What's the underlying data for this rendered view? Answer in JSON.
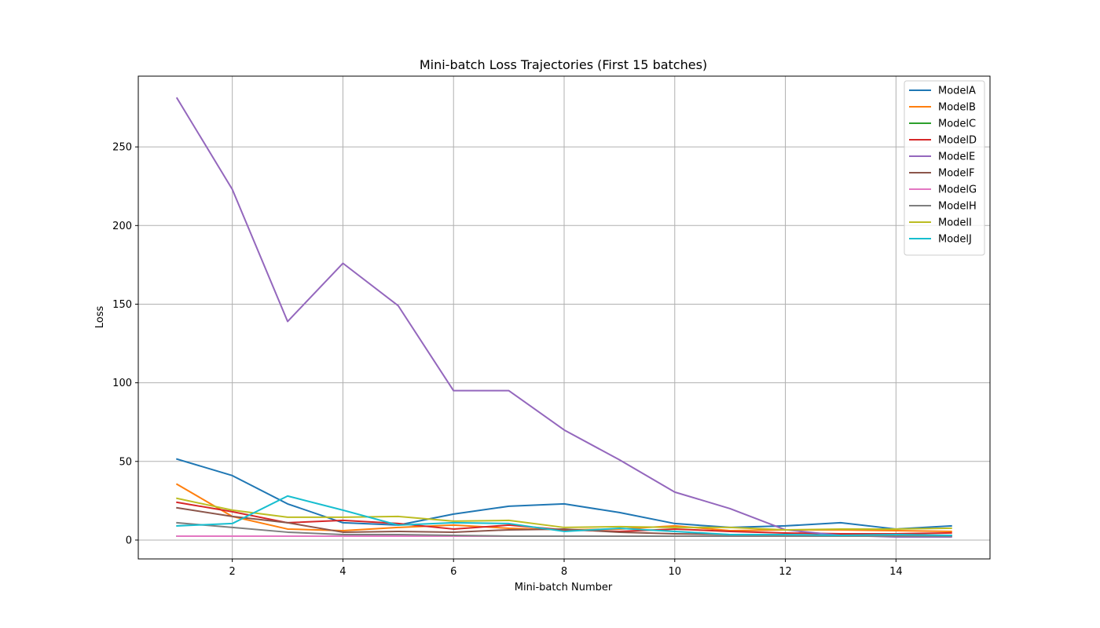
{
  "chart_data": {
    "type": "line",
    "title": "Mini-batch Loss Trajectories (First 15 batches)",
    "xlabel": "Mini-batch Number",
    "ylabel": "Loss",
    "xlim": [
      0.3,
      15.7
    ],
    "ylim": [
      -12,
      295
    ],
    "xticks": [
      2,
      4,
      6,
      8,
      10,
      12,
      14
    ],
    "yticks": [
      0,
      50,
      100,
      150,
      200,
      250
    ],
    "grid": true,
    "legend_position": "top-right",
    "x": [
      1,
      2,
      3,
      4,
      5,
      6,
      7,
      8,
      9,
      10,
      11,
      12,
      13,
      14,
      15
    ],
    "series": [
      {
        "name": "ModelA",
        "color": "#1f77b4",
        "values": [
          51.5,
          41,
          23,
          11,
          9.5,
          16.5,
          21.5,
          23,
          17.5,
          10.5,
          8,
          9,
          11,
          7,
          9
        ]
      },
      {
        "name": "ModelB",
        "color": "#ff7f0e",
        "values": [
          35.5,
          15,
          7,
          6,
          8,
          9.5,
          7.5,
          6.5,
          7,
          9,
          6,
          6.5,
          6.5,
          6,
          5.5
        ]
      },
      {
        "name": "ModelC",
        "color": "#2ca02c",
        "values": [
          2.5,
          2.5,
          2.5,
          2.5,
          2.5,
          2.5,
          2.5,
          2.5,
          2.5,
          2.5,
          2.5,
          2.5,
          2.5,
          2.5,
          2.5
        ]
      },
      {
        "name": "ModelD",
        "color": "#d62728",
        "values": [
          24,
          18,
          11,
          12.5,
          10.5,
          7,
          9.5,
          6.5,
          5.5,
          7,
          5.5,
          4.5,
          4,
          4,
          4.5
        ]
      },
      {
        "name": "ModelE",
        "color": "#9467bd",
        "values": [
          281,
          223,
          139,
          176,
          149,
          95,
          95,
          70,
          51,
          30.5,
          20,
          6.5,
          3,
          2,
          2
        ]
      },
      {
        "name": "ModelF",
        "color": "#8c564b",
        "values": [
          20.5,
          15,
          11,
          5,
          5.5,
          5,
          6.5,
          7,
          5,
          4,
          3.5,
          3,
          3,
          3,
          3
        ]
      },
      {
        "name": "ModelG",
        "color": "#e377c2",
        "values": [
          2.5,
          2.5,
          2.5,
          2.5,
          2.5,
          2.5,
          2.5,
          2.5,
          2.5,
          2.5,
          2.5,
          2.5,
          2.5,
          2.5,
          2.5
        ]
      },
      {
        "name": "ModelH",
        "color": "#7f7f7f",
        "values": [
          11,
          8,
          5,
          3.5,
          3.5,
          3,
          2.5,
          2.5,
          2.5,
          2.5,
          2.5,
          2.5,
          2.5,
          2.5,
          2.5
        ]
      },
      {
        "name": "ModelI",
        "color": "#bcbd22",
        "values": [
          26.5,
          19,
          14.5,
          14.5,
          15,
          12,
          12.5,
          8,
          8.5,
          8,
          8,
          6.5,
          7,
          7,
          7.5
        ]
      },
      {
        "name": "ModelJ",
        "color": "#17becf",
        "values": [
          9,
          10.5,
          28,
          19,
          9.5,
          11,
          10.5,
          5.5,
          7.5,
          5.5,
          3.5,
          3.5,
          3,
          3.5,
          3
        ]
      }
    ]
  }
}
